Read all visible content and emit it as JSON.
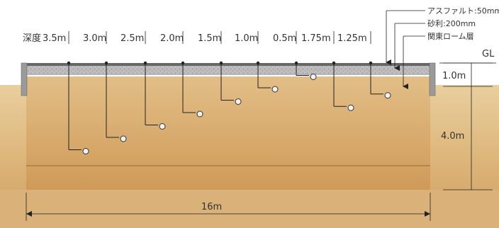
{
  "depth_prefix": "深度",
  "sensors": [
    {
      "depth": "3.5m"
    },
    {
      "depth": "3.0m"
    },
    {
      "depth": "2.5m"
    },
    {
      "depth": "2.0m"
    },
    {
      "depth": "1.5m"
    },
    {
      "depth": "1.0m"
    },
    {
      "depth": "0.5m"
    },
    {
      "depth": "1.75m"
    },
    {
      "depth": "1.25m"
    }
  ],
  "layers": {
    "asphalt": "アスファルト:50mm",
    "gravel": "砂利:200mm",
    "loam": "関東ローム層"
  },
  "gl_label": "GL",
  "dim_top": "1.0m",
  "dim_bottom": "4.0m",
  "width_label": "16m",
  "colors": {
    "soil_light": "#ead3a8",
    "soil_mid": "#dcb67d",
    "soil_dark": "#c89a5f",
    "wall": "#9a9a9a",
    "line": "#222222",
    "sensor_fill": "#f2f2f2"
  }
}
